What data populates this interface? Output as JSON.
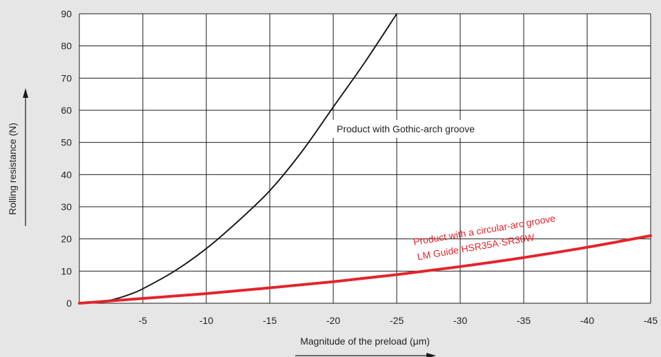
{
  "chart_data": {
    "type": "line",
    "title": "",
    "xlabel": "Magnitude of the preload (μm)",
    "ylabel": "Rolling resistance (N)",
    "xlim": [
      0,
      -45
    ],
    "ylim": [
      0,
      90
    ],
    "x_ticks": [
      0,
      -5,
      -10,
      -15,
      -20,
      -25,
      -30,
      -35,
      -40,
      -45
    ],
    "x_tick_labels": [
      "-5",
      "-10",
      "-15",
      "-20",
      "-25",
      "-30",
      "-35",
      "-40",
      "-45"
    ],
    "y_ticks": [
      0,
      10,
      20,
      30,
      40,
      50,
      60,
      70,
      80,
      90
    ],
    "y_tick_labels": [
      "0",
      "10",
      "20",
      "30",
      "40",
      "50",
      "60",
      "70",
      "80",
      "90"
    ],
    "grid": true,
    "series": [
      {
        "color": "#1a1a1a",
        "x": [
          0,
          -1,
          -2,
          -3,
          -4,
          -5,
          -7.5,
          -10,
          -12.5,
          -15,
          -17.5,
          -20,
          -22.5,
          -25
        ],
        "y": [
          0,
          0.2,
          0.6,
          1.5,
          2.8,
          4.5,
          10,
          17,
          25.5,
          35,
          47,
          61,
          75,
          90
        ]
      },
      {
        "color": "#e3242b",
        "x": [
          0,
          -5,
          -10,
          -15,
          -20,
          -25,
          -30,
          -35,
          -40,
          -45
        ],
        "y": [
          0,
          1.5,
          3,
          4.8,
          6.7,
          8.9,
          11.4,
          14.2,
          17.4,
          21
        ]
      }
    ],
    "annotations": [
      {
        "text": "Product with Gothic-arch groove",
        "color": "#222222"
      },
      {
        "text": "Product with a circular-arc groove",
        "color": "#e3242b"
      },
      {
        "text": "LM Guide HSR35A·SR30W",
        "color": "#e3242b"
      }
    ]
  }
}
